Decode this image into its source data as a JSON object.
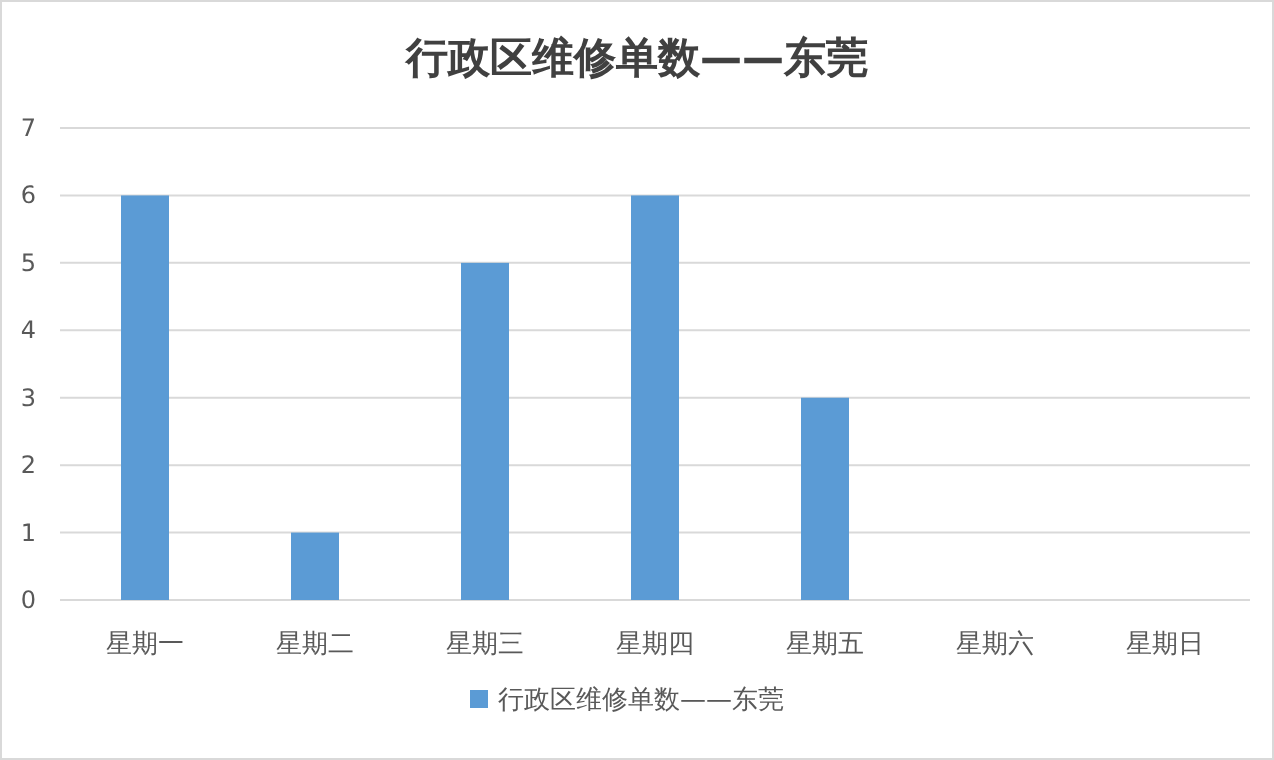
{
  "chart_data": {
    "type": "bar",
    "title": "行政区维修单数——东莞",
    "categories": [
      "星期一",
      "星期二",
      "星期三",
      "星期四",
      "星期五",
      "星期六",
      "星期日"
    ],
    "series": [
      {
        "name": "行政区维修单数——东莞",
        "color": "#5b9bd5",
        "values": [
          6,
          1,
          5,
          6,
          3,
          0,
          0
        ]
      }
    ],
    "ylim": [
      0,
      7
    ],
    "yticks": [
      0,
      1,
      2,
      3,
      4,
      5,
      6,
      7
    ],
    "grid": "y",
    "legend": "bottom"
  }
}
